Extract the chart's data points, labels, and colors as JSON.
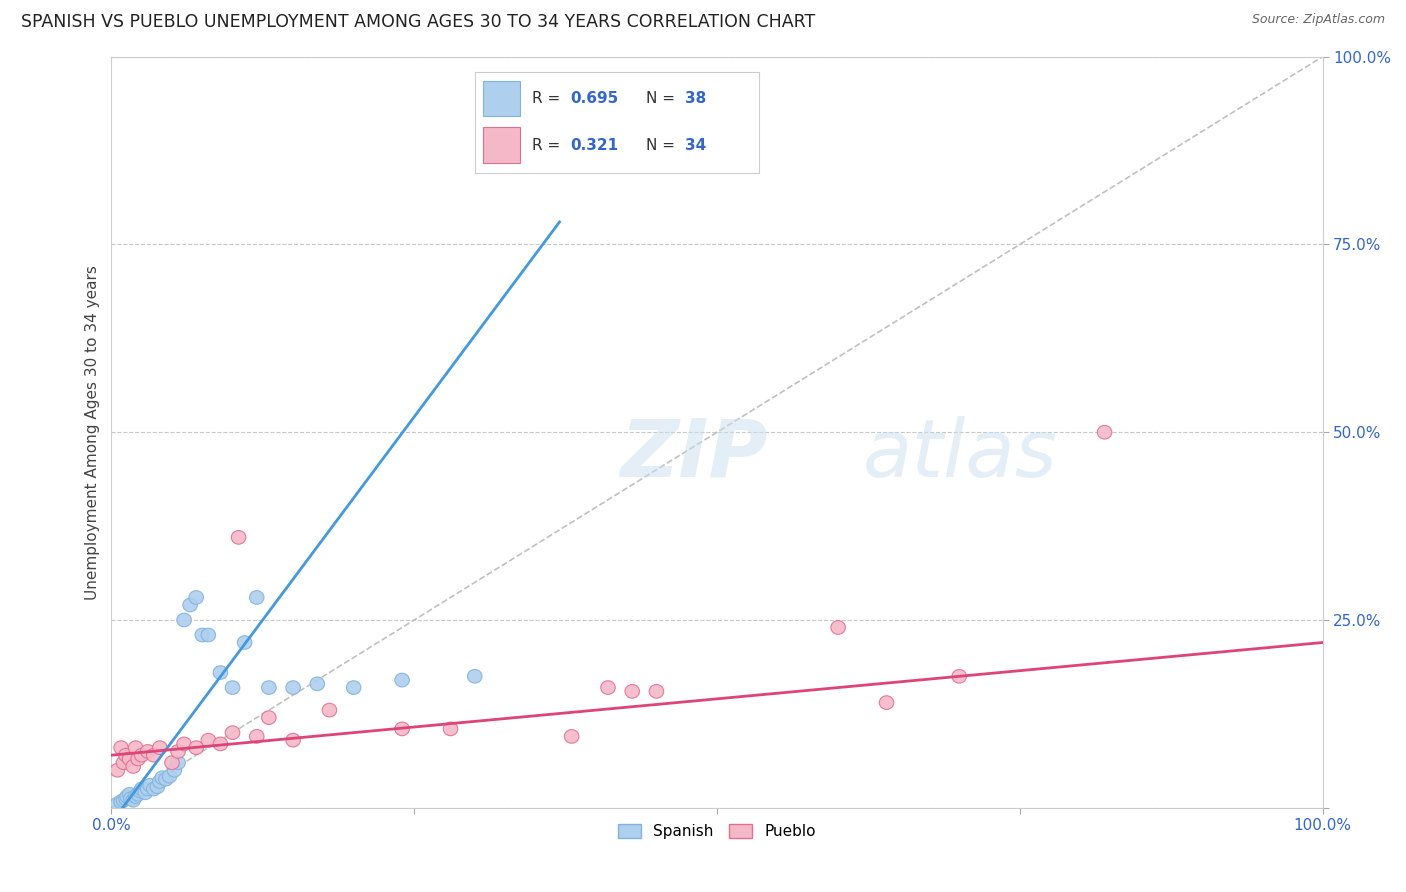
{
  "title": "SPANISH VS PUEBLO UNEMPLOYMENT AMONG AGES 30 TO 34 YEARS CORRELATION CHART",
  "source": "Source: ZipAtlas.com",
  "ylabel": "Unemployment Among Ages 30 to 34 years",
  "xlim": [
    0,
    1.0
  ],
  "ylim": [
    0,
    1.0
  ],
  "background_color": "#ffffff",
  "grid_color": "#c8c8c8",
  "spanish_color": "#aecfee",
  "spanish_edge_color": "#82b3dd",
  "pueblo_color": "#f5b8c8",
  "pueblo_edge_color": "#e07090",
  "spanish_R": "0.695",
  "spanish_N": "38",
  "pueblo_R": "0.321",
  "pueblo_N": "34",
  "legend_value_color": "#3366cc",
  "spanish_line_color": "#4499dd",
  "pueblo_line_color": "#dd4477",
  "diagonal_color": "#c0c0c0",
  "sp_line_x0": 0.0,
  "sp_line_y0": -0.02,
  "sp_line_x1": 0.37,
  "sp_line_y1": 0.78,
  "pu_line_x0": 0.0,
  "pu_line_y0": 0.07,
  "pu_line_x1": 1.0,
  "pu_line_y1": 0.22,
  "spanish_x": [
    0.005,
    0.008,
    0.01,
    0.012,
    0.013,
    0.015,
    0.016,
    0.018,
    0.02,
    0.022,
    0.024,
    0.025,
    0.028,
    0.03,
    0.032,
    0.035,
    0.038,
    0.04,
    0.042,
    0.045,
    0.048,
    0.052,
    0.055,
    0.06,
    0.065,
    0.07,
    0.075,
    0.08,
    0.09,
    0.1,
    0.11,
    0.12,
    0.13,
    0.15,
    0.17,
    0.2,
    0.24,
    0.3
  ],
  "spanish_y": [
    0.005,
    0.008,
    0.01,
    0.012,
    0.015,
    0.018,
    0.012,
    0.01,
    0.015,
    0.018,
    0.022,
    0.025,
    0.02,
    0.025,
    0.03,
    0.025,
    0.028,
    0.035,
    0.04,
    0.038,
    0.042,
    0.05,
    0.06,
    0.25,
    0.27,
    0.28,
    0.23,
    0.23,
    0.18,
    0.16,
    0.22,
    0.28,
    0.16,
    0.16,
    0.165,
    0.16,
    0.17,
    0.175
  ],
  "pueblo_x": [
    0.005,
    0.008,
    0.01,
    0.012,
    0.015,
    0.018,
    0.02,
    0.022,
    0.025,
    0.03,
    0.035,
    0.04,
    0.05,
    0.055,
    0.06,
    0.07,
    0.08,
    0.09,
    0.1,
    0.105,
    0.12,
    0.13,
    0.15,
    0.18,
    0.24,
    0.28,
    0.38,
    0.41,
    0.43,
    0.45,
    0.6,
    0.64,
    0.7,
    0.82
  ],
  "pueblo_y": [
    0.05,
    0.08,
    0.06,
    0.07,
    0.065,
    0.055,
    0.08,
    0.065,
    0.07,
    0.075,
    0.07,
    0.08,
    0.06,
    0.075,
    0.085,
    0.08,
    0.09,
    0.085,
    0.1,
    0.36,
    0.095,
    0.12,
    0.09,
    0.13,
    0.105,
    0.105,
    0.095,
    0.16,
    0.155,
    0.155,
    0.24,
    0.14,
    0.175,
    0.5
  ]
}
